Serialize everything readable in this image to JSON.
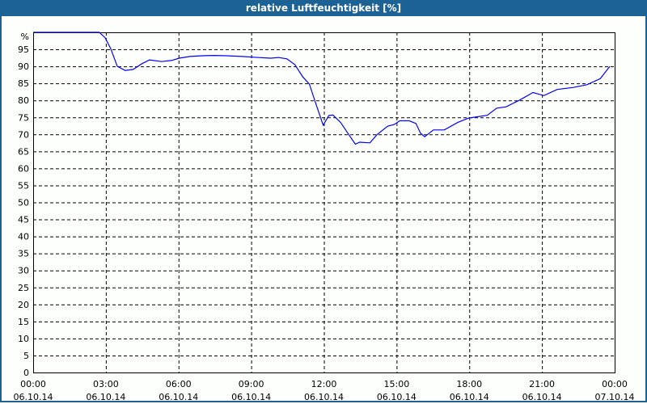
{
  "chart_data": {
    "type": "line",
    "title": "relative Luftfeuchtigkeit [%]",
    "ylabel": "%",
    "ylim": [
      0,
      100
    ],
    "yticks": [
      0,
      5,
      10,
      15,
      20,
      25,
      30,
      35,
      40,
      45,
      50,
      55,
      60,
      65,
      70,
      75,
      80,
      85,
      90,
      95
    ],
    "xlim_hours": [
      0,
      24
    ],
    "xticks": [
      {
        "time": "00:00",
        "date": "06.10.14"
      },
      {
        "time": "03:00",
        "date": "06.10.14"
      },
      {
        "time": "06:00",
        "date": "06.10.14"
      },
      {
        "time": "09:00",
        "date": "06.10.14"
      },
      {
        "time": "12:00",
        "date": "06.10.14"
      },
      {
        "time": "15:00",
        "date": "06.10.14"
      },
      {
        "time": "18:00",
        "date": "06.10.14"
      },
      {
        "time": "21:00",
        "date": "06.10.14"
      },
      {
        "time": "00:00",
        "date": "07.10.14"
      }
    ],
    "grid": true,
    "line_color": "#0000ff",
    "series": [
      {
        "x_hours": [
          0,
          0.25,
          2.73,
          2.97,
          3.2,
          3.47,
          3.8,
          4.13,
          4.47,
          4.8,
          5.3,
          5.7,
          6.03,
          6.47,
          6.97,
          7.47,
          7.97,
          8.63,
          9.3,
          9.8,
          10.13,
          10.47,
          10.8,
          11.13,
          11.4,
          11.63,
          11.97,
          12.2,
          12.37,
          12.69,
          12.97,
          13.3,
          13.47,
          13.9,
          14.19,
          14.63,
          14.9,
          15.13,
          15.52,
          15.8,
          15.99,
          16.16,
          16.52,
          16.97,
          17.52,
          17.97,
          18.74,
          19.13,
          19.52,
          20.08,
          20.63,
          21.08,
          21.63,
          22.3,
          22.86,
          23.41,
          23.8
        ],
        "values": [
          100,
          100,
          100,
          98.4,
          95.2,
          90,
          88.8,
          89.1,
          90.7,
          91.9,
          91.4,
          91.7,
          92.4,
          92.9,
          93.1,
          93.2,
          93.1,
          92.9,
          92.6,
          92.4,
          92.6,
          92.2,
          90.5,
          86.9,
          84.8,
          79.8,
          72.7,
          75.5,
          75.7,
          73.5,
          70.5,
          67.1,
          67.7,
          67.5,
          69.9,
          72.4,
          72.9,
          74.0,
          74.0,
          73.2,
          70.3,
          69.3,
          71.3,
          71.3,
          73.5,
          74.8,
          75.6,
          77.7,
          78.1,
          80.1,
          82.3,
          81.4,
          83.2,
          83.8,
          84.6,
          86.4,
          90.0
        ]
      }
    ]
  }
}
